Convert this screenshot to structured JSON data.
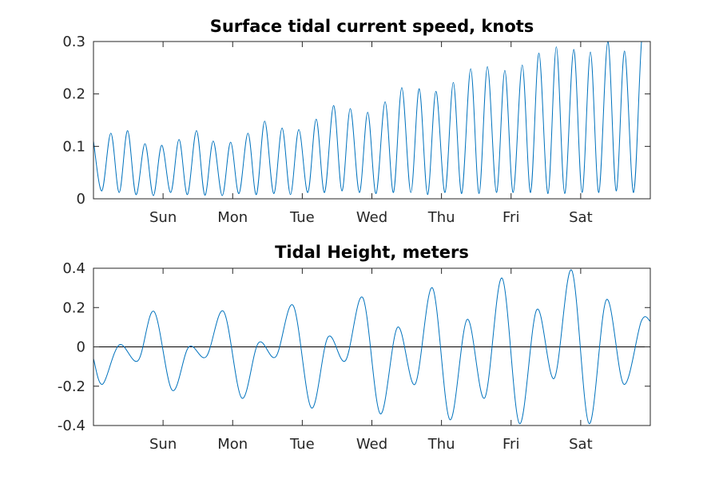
{
  "chart_data": [
    {
      "type": "line",
      "title": "Surface tidal current speed, knots",
      "xlabel": "",
      "ylabel": "",
      "xlim": [
        0,
        8
      ],
      "ylim": [
        0,
        0.3
      ],
      "x_ticks": [
        {
          "value": 1,
          "label": "Sun"
        },
        {
          "value": 2,
          "label": "Mon"
        },
        {
          "value": 3,
          "label": "Tue"
        },
        {
          "value": 4,
          "label": "Wed"
        },
        {
          "value": 5,
          "label": "Thu"
        },
        {
          "value": 6,
          "label": "Fri"
        },
        {
          "value": 7,
          "label": "Sat"
        }
      ],
      "y_ticks": [
        {
          "value": 0,
          "label": "0"
        },
        {
          "value": 0.1,
          "label": "0.1"
        },
        {
          "value": 0.2,
          "label": "0.2"
        },
        {
          "value": 0.3,
          "label": "0.3"
        }
      ],
      "grid": false,
      "series": [
        {
          "color": "#0072BD",
          "x": [
            0.0,
            0.12,
            0.25,
            0.37,
            0.49,
            0.61,
            0.74,
            0.86,
            0.98,
            1.11,
            1.23,
            1.35,
            1.48,
            1.6,
            1.72,
            1.85,
            1.97,
            2.09,
            2.22,
            2.34,
            2.46,
            2.59,
            2.71,
            2.83,
            2.95,
            3.08,
            3.2,
            3.32,
            3.45,
            3.57,
            3.69,
            3.82,
            3.94,
            4.06,
            4.19,
            4.31,
            4.43,
            4.56,
            4.68,
            4.8,
            4.92,
            5.05,
            5.17,
            5.29,
            5.42,
            5.54,
            5.66,
            5.79,
            5.91,
            6.03,
            6.16,
            6.28,
            6.4,
            6.53,
            6.65,
            6.77,
            6.9,
            7.02,
            7.14,
            7.26,
            7.39,
            7.51,
            7.63,
            7.76,
            7.88,
            8.0
          ],
          "y": [
            0.11,
            0.015,
            0.125,
            0.012,
            0.13,
            0.008,
            0.105,
            0.006,
            0.102,
            0.012,
            0.113,
            0.008,
            0.13,
            0.007,
            0.11,
            0.006,
            0.108,
            0.01,
            0.125,
            0.008,
            0.148,
            0.01,
            0.135,
            0.008,
            0.132,
            0.012,
            0.152,
            0.012,
            0.178,
            0.015,
            0.172,
            0.012,
            0.165,
            0.01,
            0.185,
            0.012,
            0.212,
            0.012,
            0.21,
            0.008,
            0.205,
            0.012,
            0.222,
            0.01,
            0.248,
            0.01,
            0.252,
            0.012,
            0.245,
            0.012,
            0.255,
            0.012,
            0.278,
            0.01,
            0.29,
            0.01,
            0.285,
            0.012,
            0.28,
            0.012,
            0.3,
            0.015,
            0.282,
            0.012,
            0.31,
            0.31
          ]
        }
      ]
    },
    {
      "type": "line",
      "title": "Tidal Height, meters",
      "xlabel": "",
      "ylabel": "",
      "xlim": [
        0,
        8
      ],
      "ylim": [
        -0.4,
        0.4
      ],
      "x_ticks": [
        {
          "value": 1,
          "label": "Sun"
        },
        {
          "value": 2,
          "label": "Mon"
        },
        {
          "value": 3,
          "label": "Tue"
        },
        {
          "value": 4,
          "label": "Wed"
        },
        {
          "value": 5,
          "label": "Thu"
        },
        {
          "value": 6,
          "label": "Fri"
        },
        {
          "value": 7,
          "label": "Sat"
        }
      ],
      "y_ticks": [
        {
          "value": -0.4,
          "label": "-0.4"
        },
        {
          "value": -0.2,
          "label": "-0.2"
        },
        {
          "value": 0,
          "label": "0"
        },
        {
          "value": 0.2,
          "label": "0.2"
        },
        {
          "value": 0.4,
          "label": "0.4"
        }
      ],
      "grid": false,
      "reference_line": 0,
      "series": [
        {
          "color": "#0072BD",
          "x": [
            0.0,
            0.13,
            0.37,
            0.64,
            0.87,
            1.13,
            1.37,
            1.62,
            1.87,
            2.13,
            2.37,
            2.62,
            2.87,
            3.13,
            3.37,
            3.62,
            3.87,
            4.12,
            4.37,
            4.62,
            4.87,
            5.12,
            5.37,
            5.62,
            5.87,
            6.12,
            6.37,
            6.62,
            6.87,
            7.12,
            7.37,
            7.62,
            7.87,
            8.0
          ],
          "y": [
            -0.06,
            -0.19,
            0.01,
            -0.07,
            0.18,
            -0.22,
            0.0,
            -0.05,
            0.18,
            -0.26,
            0.02,
            -0.05,
            0.21,
            -0.31,
            0.05,
            -0.07,
            0.25,
            -0.34,
            0.1,
            -0.19,
            0.3,
            -0.37,
            0.14,
            -0.26,
            0.35,
            -0.39,
            0.19,
            -0.16,
            0.39,
            -0.39,
            0.24,
            -0.19,
            0.13,
            0.13
          ]
        }
      ]
    }
  ]
}
